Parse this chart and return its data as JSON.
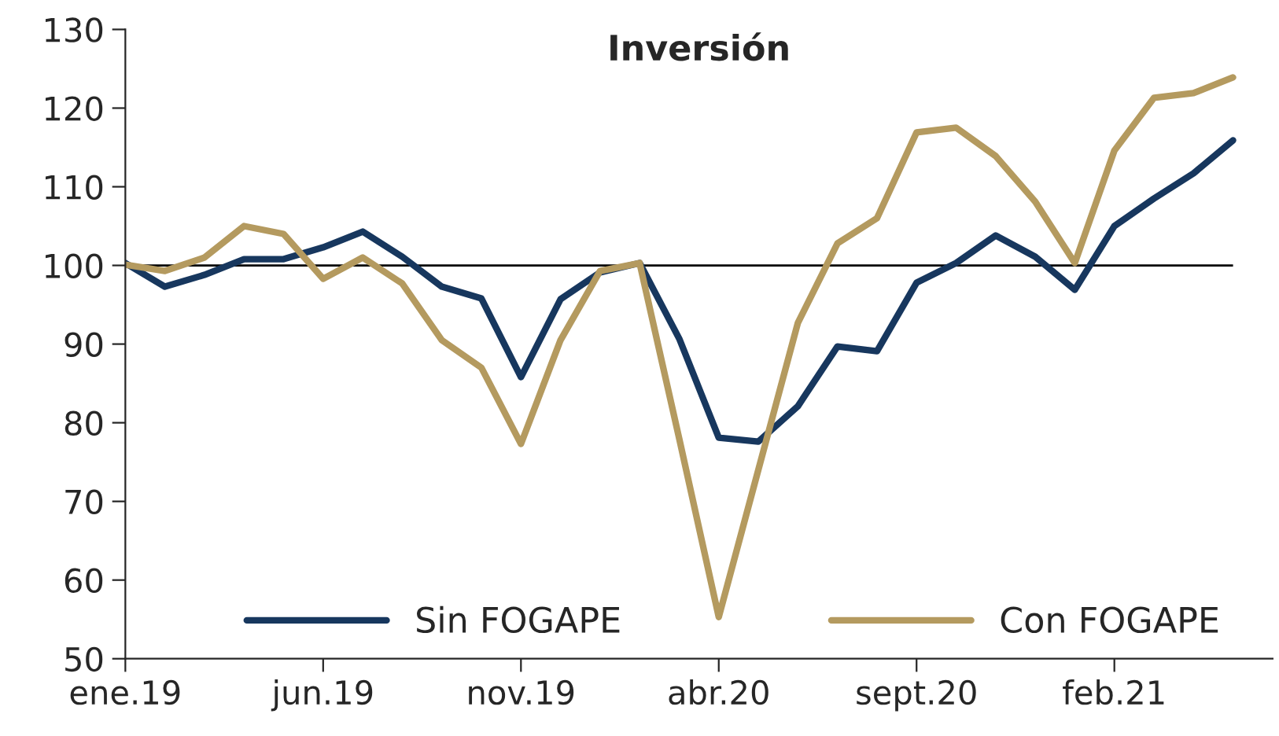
{
  "chart_data": {
    "type": "line",
    "title": "Inversión",
    "categories": [
      "ene.19",
      null,
      null,
      null,
      null,
      "jun.19",
      null,
      null,
      null,
      null,
      "nov.19",
      null,
      null,
      null,
      null,
      "abr.20",
      null,
      null,
      null,
      null,
      "sept.20",
      null,
      null,
      null,
      null,
      "feb.21",
      null,
      null,
      null
    ],
    "series": [
      {
        "name": "Sin FOGAPE",
        "color": "#17375e",
        "values": [
          100.3,
          97.3,
          98.8,
          100.8,
          100.8,
          102.3,
          104.3,
          101.1,
          97.3,
          95.8,
          85.8,
          95.7,
          99.1,
          100.3,
          90.7,
          78.1,
          77.6,
          82.1,
          89.7,
          89.1,
          97.8,
          100.3,
          103.8,
          101.1,
          96.9,
          105,
          108.5,
          111.7,
          115.9
        ]
      },
      {
        "name": "Con FOGAPE",
        "color": "#b49a5f",
        "values": [
          100.1,
          99.3,
          101,
          105,
          104,
          98.3,
          101,
          97.7,
          90.5,
          87,
          77.3,
          90.5,
          99.3,
          100.3,
          78,
          55.3,
          74,
          92.7,
          102.8,
          106,
          116.9,
          117.5,
          113.9,
          108.1,
          100.3,
          114.6,
          121.3,
          121.9,
          123.9
        ]
      }
    ],
    "ylim": [
      50,
      130
    ],
    "yticks": [
      50,
      60,
      70,
      80,
      90,
      100,
      110,
      120,
      130
    ],
    "ref_lines": [
      {
        "axis": "y",
        "value": 100,
        "color": "#000000"
      }
    ],
    "grid": false,
    "legend": "bottom",
    "marker": "none",
    "line_style": "solid"
  }
}
